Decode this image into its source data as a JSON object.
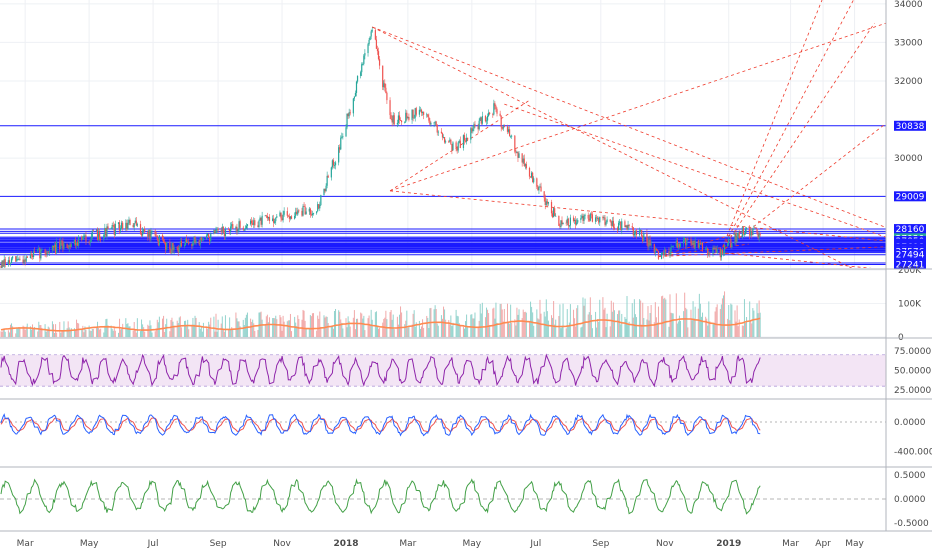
{
  "chart_data": [
    {
      "type": "candlestick",
      "name": "price",
      "ylim": [
        27150,
        34100
      ],
      "price_ticks": [
        34000,
        33000,
        32000,
        30000
      ],
      "x_dates": [
        "2017-02-05",
        "2019-05-31"
      ],
      "x_ticks": [
        {
          "label": "Mar",
          "date": "2017-03-01",
          "bold": false
        },
        {
          "label": "May",
          "date": "2017-05-01",
          "bold": false
        },
        {
          "label": "Jul",
          "date": "2017-07-01",
          "bold": false
        },
        {
          "label": "Sep",
          "date": "2017-09-01",
          "bold": false
        },
        {
          "label": "Nov",
          "date": "2017-11-01",
          "bold": false
        },
        {
          "label": "2018",
          "date": "2018-01-01",
          "bold": true
        },
        {
          "label": "Mar",
          "date": "2018-03-01",
          "bold": false
        },
        {
          "label": "May",
          "date": "2018-05-01",
          "bold": false
        },
        {
          "label": "Jul",
          "date": "2018-07-01",
          "bold": false
        },
        {
          "label": "Sep",
          "date": "2018-09-01",
          "bold": false
        },
        {
          "label": "Nov",
          "date": "2018-11-01",
          "bold": false
        },
        {
          "label": "2019",
          "date": "2019-01-01",
          "bold": true
        },
        {
          "label": "Mar",
          "date": "2019-03-01",
          "bold": false
        },
        {
          "label": "Apr",
          "date": "2019-04-01",
          "bold": false
        },
        {
          "label": "May",
          "date": "2019-05-01",
          "bold": false
        }
      ],
      "trend_points": [
        {
          "date": "2017-02-05",
          "value": 27200
        },
        {
          "date": "2017-06-10",
          "value": 28300
        },
        {
          "date": "2017-07-20",
          "value": 27650
        },
        {
          "date": "2017-09-25",
          "value": 28250
        },
        {
          "date": "2017-12-05",
          "value": 28700
        },
        {
          "date": "2017-12-28",
          "value": 30500
        },
        {
          "date": "2018-01-26",
          "value": 33400
        },
        {
          "date": "2018-02-12",
          "value": 31000
        },
        {
          "date": "2018-03-15",
          "value": 31200
        },
        {
          "date": "2018-04-15",
          "value": 30250
        },
        {
          "date": "2018-05-22",
          "value": 31300
        },
        {
          "date": "2018-06-29",
          "value": 29400
        },
        {
          "date": "2018-07-25",
          "value": 28250
        },
        {
          "date": "2018-08-28",
          "value": 28500
        },
        {
          "date": "2018-10-10",
          "value": 28000
        },
        {
          "date": "2018-10-26",
          "value": 27450
        },
        {
          "date": "2018-11-20",
          "value": 27850
        },
        {
          "date": "2018-12-24",
          "value": 27550
        },
        {
          "date": "2019-01-17",
          "value": 28200
        },
        {
          "date": "2019-01-31",
          "value": 27900
        }
      ],
      "horizontal_levels": [
        30838,
        29009,
        28160,
        28100,
        28050,
        27950,
        27920,
        27900,
        27870,
        27850,
        27820,
        27784,
        27770,
        27755,
        27740,
        27725,
        27710,
        27698,
        27670,
        27646,
        27618,
        27600,
        27576,
        27550,
        27494,
        27279,
        27241
      ],
      "level_labels": [
        {
          "text": "30838",
          "value": 30838,
          "color": "#1a1aff"
        },
        {
          "text": "29009",
          "value": 29009,
          "color": "#1a1aff"
        },
        {
          "text": "28160",
          "value": 28160,
          "color": "#1a1aff"
        },
        {
          "text": "27950",
          "value": 27950,
          "color": "#1a1aff"
        },
        {
          "text": "27920",
          "value": 27920,
          "color": "#26a69a"
        },
        {
          "text": "27850",
          "value": 27850,
          "color": "#1a1aff"
        },
        {
          "text": "27784",
          "value": 27784,
          "color": "#1a1aff"
        },
        {
          "text": "27755",
          "value": 27755,
          "color": "#1a1aff"
        },
        {
          "text": "27725",
          "value": 27725,
          "color": "#1a1aff"
        },
        {
          "text": "27698",
          "value": 27698,
          "color": "#1a1aff"
        },
        {
          "text": "27646",
          "value": 27646,
          "color": "#1a1aff"
        },
        {
          "text": "27618",
          "value": 27618,
          "color": "#1a1aff"
        },
        {
          "text": "27576",
          "value": 27576,
          "color": "#1a1aff"
        },
        {
          "text": "27494",
          "value": 27494,
          "color": "#1a1aff"
        },
        {
          "text": "27279",
          "value": 27279,
          "color": "#1a1aff"
        },
        {
          "text": "27241",
          "value": 27241,
          "color": "#1a1aff"
        }
      ],
      "trend_lines": [
        {
          "from": {
            "date": "2018-01-26",
            "value": 33400
          },
          "to": {
            "date": "2019-05-31",
            "value": 26700
          }
        },
        {
          "from": {
            "date": "2018-01-26",
            "value": 33400
          },
          "to": {
            "date": "2019-05-31",
            "value": 28200
          }
        },
        {
          "from": {
            "date": "2018-02-12",
            "value": 29150
          },
          "to": {
            "date": "2018-06-25",
            "value": 31500
          }
        },
        {
          "from": {
            "date": "2018-02-12",
            "value": 29150
          },
          "to": {
            "date": "2019-05-31",
            "value": 27850
          }
        },
        {
          "from": {
            "date": "2018-06-01",
            "value": 31400
          },
          "to": {
            "date": "2019-05-31",
            "value": 27950
          }
        },
        {
          "from": {
            "date": "2018-10-26",
            "value": 27450
          },
          "to": {
            "date": "2019-01-15",
            "value": 28100
          }
        },
        {
          "from": {
            "date": "2018-10-26",
            "value": 27450
          },
          "to": {
            "date": "2019-05-31",
            "value": 27700
          }
        },
        {
          "from": {
            "date": "2018-10-26",
            "value": 27450
          },
          "to": {
            "date": "2019-01-20",
            "value": 27770
          }
        },
        {
          "from": {
            "date": "2018-12-24",
            "value": 27550
          },
          "to": {
            "date": "2019-05-31",
            "value": 27100
          }
        },
        {
          "from": {
            "date": "2018-12-24",
            "value": 27550
          },
          "to": {
            "date": "2019-03-31",
            "value": 34100
          }
        },
        {
          "from": {
            "date": "2018-12-24",
            "value": 27550
          },
          "to": {
            "date": "2019-04-30",
            "value": 34100
          }
        },
        {
          "from": {
            "date": "2018-12-24",
            "value": 27550
          },
          "to": {
            "date": "2019-05-20",
            "value": 33500
          }
        },
        {
          "from": {
            "date": "2018-12-24",
            "value": 27550
          },
          "to": {
            "date": "2019-05-31",
            "value": 30900
          }
        },
        {
          "from": {
            "date": "2018-02-12",
            "value": 29150
          },
          "to": {
            "date": "2019-05-31",
            "value": 33500
          }
        }
      ],
      "colors": {
        "up": "#26a69a",
        "down": "#ef5350",
        "level": "#1a1aff",
        "trend": "#ef3b2c"
      }
    },
    {
      "type": "bar",
      "name": "volume",
      "ylim": [
        0,
        200000
      ],
      "ticks": [
        {
          "label": "200K",
          "value": 200000
        },
        {
          "label": "100K",
          "value": 100000
        },
        {
          "label": "0",
          "value": 0
        }
      ],
      "base_level": 60000,
      "ma_level": 40000,
      "ma_color": "#ff8a50"
    },
    {
      "type": "line",
      "name": "oscillator-1",
      "ylim": [
        15,
        90
      ],
      "ticks": [
        {
          "label": "75.0000",
          "value": 75
        },
        {
          "label": "50.0000",
          "value": 50
        },
        {
          "label": "25.0000",
          "value": 25
        }
      ],
      "band": [
        30,
        70
      ],
      "mean": 50,
      "amplitude": 15,
      "line_color": "#8e24aa",
      "band_color": "#f3e5f5"
    },
    {
      "type": "line",
      "name": "oscillator-2",
      "ylim": [
        -600,
        300
      ],
      "ticks": [
        {
          "label": "0.0000",
          "value": 0
        },
        {
          "label": "-400.0000",
          "value": -400
        }
      ],
      "mean": -40,
      "amplitude": 120,
      "line_color": "#2962ff",
      "signal_color": "#ef5350"
    },
    {
      "type": "line",
      "name": "oscillator-3",
      "ylim": [
        -0.65,
        0.65
      ],
      "ticks": [
        {
          "label": "0.5000",
          "value": 0.5
        },
        {
          "label": "0.0000",
          "value": 0
        },
        {
          "label": "-0.5000",
          "value": -0.5
        }
      ],
      "zero_line": 0,
      "mean": 0.05,
      "amplitude": 0.3,
      "line_color": "#43a047"
    }
  ]
}
